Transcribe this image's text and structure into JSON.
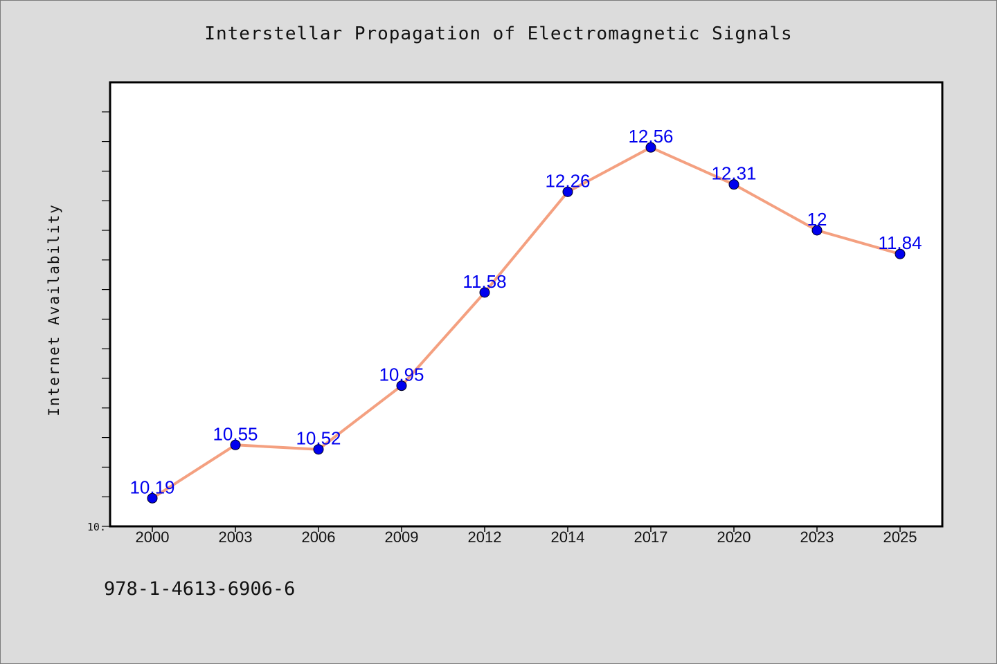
{
  "colors": {
    "background": "#dcdcdc",
    "plot_background": "#ffffff",
    "line": "#f4a080",
    "marker": "#0000ee",
    "data_label": "#0000ee"
  },
  "footer": {
    "code": "978-1-4613-6906-6"
  },
  "chart_data": {
    "type": "line",
    "title": "Interstellar Propagation of Electromagnetic Signals",
    "xlabel": "",
    "ylabel": "Internet Availability",
    "categories": [
      "2000",
      "2003",
      "2006",
      "2009",
      "2012",
      "2014",
      "2017",
      "2020",
      "2023",
      "2025"
    ],
    "series": [
      {
        "values": [
          10.19,
          10.55,
          10.52,
          10.95,
          11.58,
          12.26,
          12.56,
          12.31,
          12,
          11.84
        ],
        "labels": [
          "10.19",
          "10.55",
          "10.52",
          "10.95",
          "11.58",
          "12.26",
          "12.56",
          "12.31",
          "12",
          "11.84"
        ]
      }
    ],
    "ylim": [
      10.0,
      13.0
    ],
    "y_tick_step": 0.2,
    "y_tick_labels": [
      "10."
    ],
    "grid": false,
    "legend": "none"
  }
}
